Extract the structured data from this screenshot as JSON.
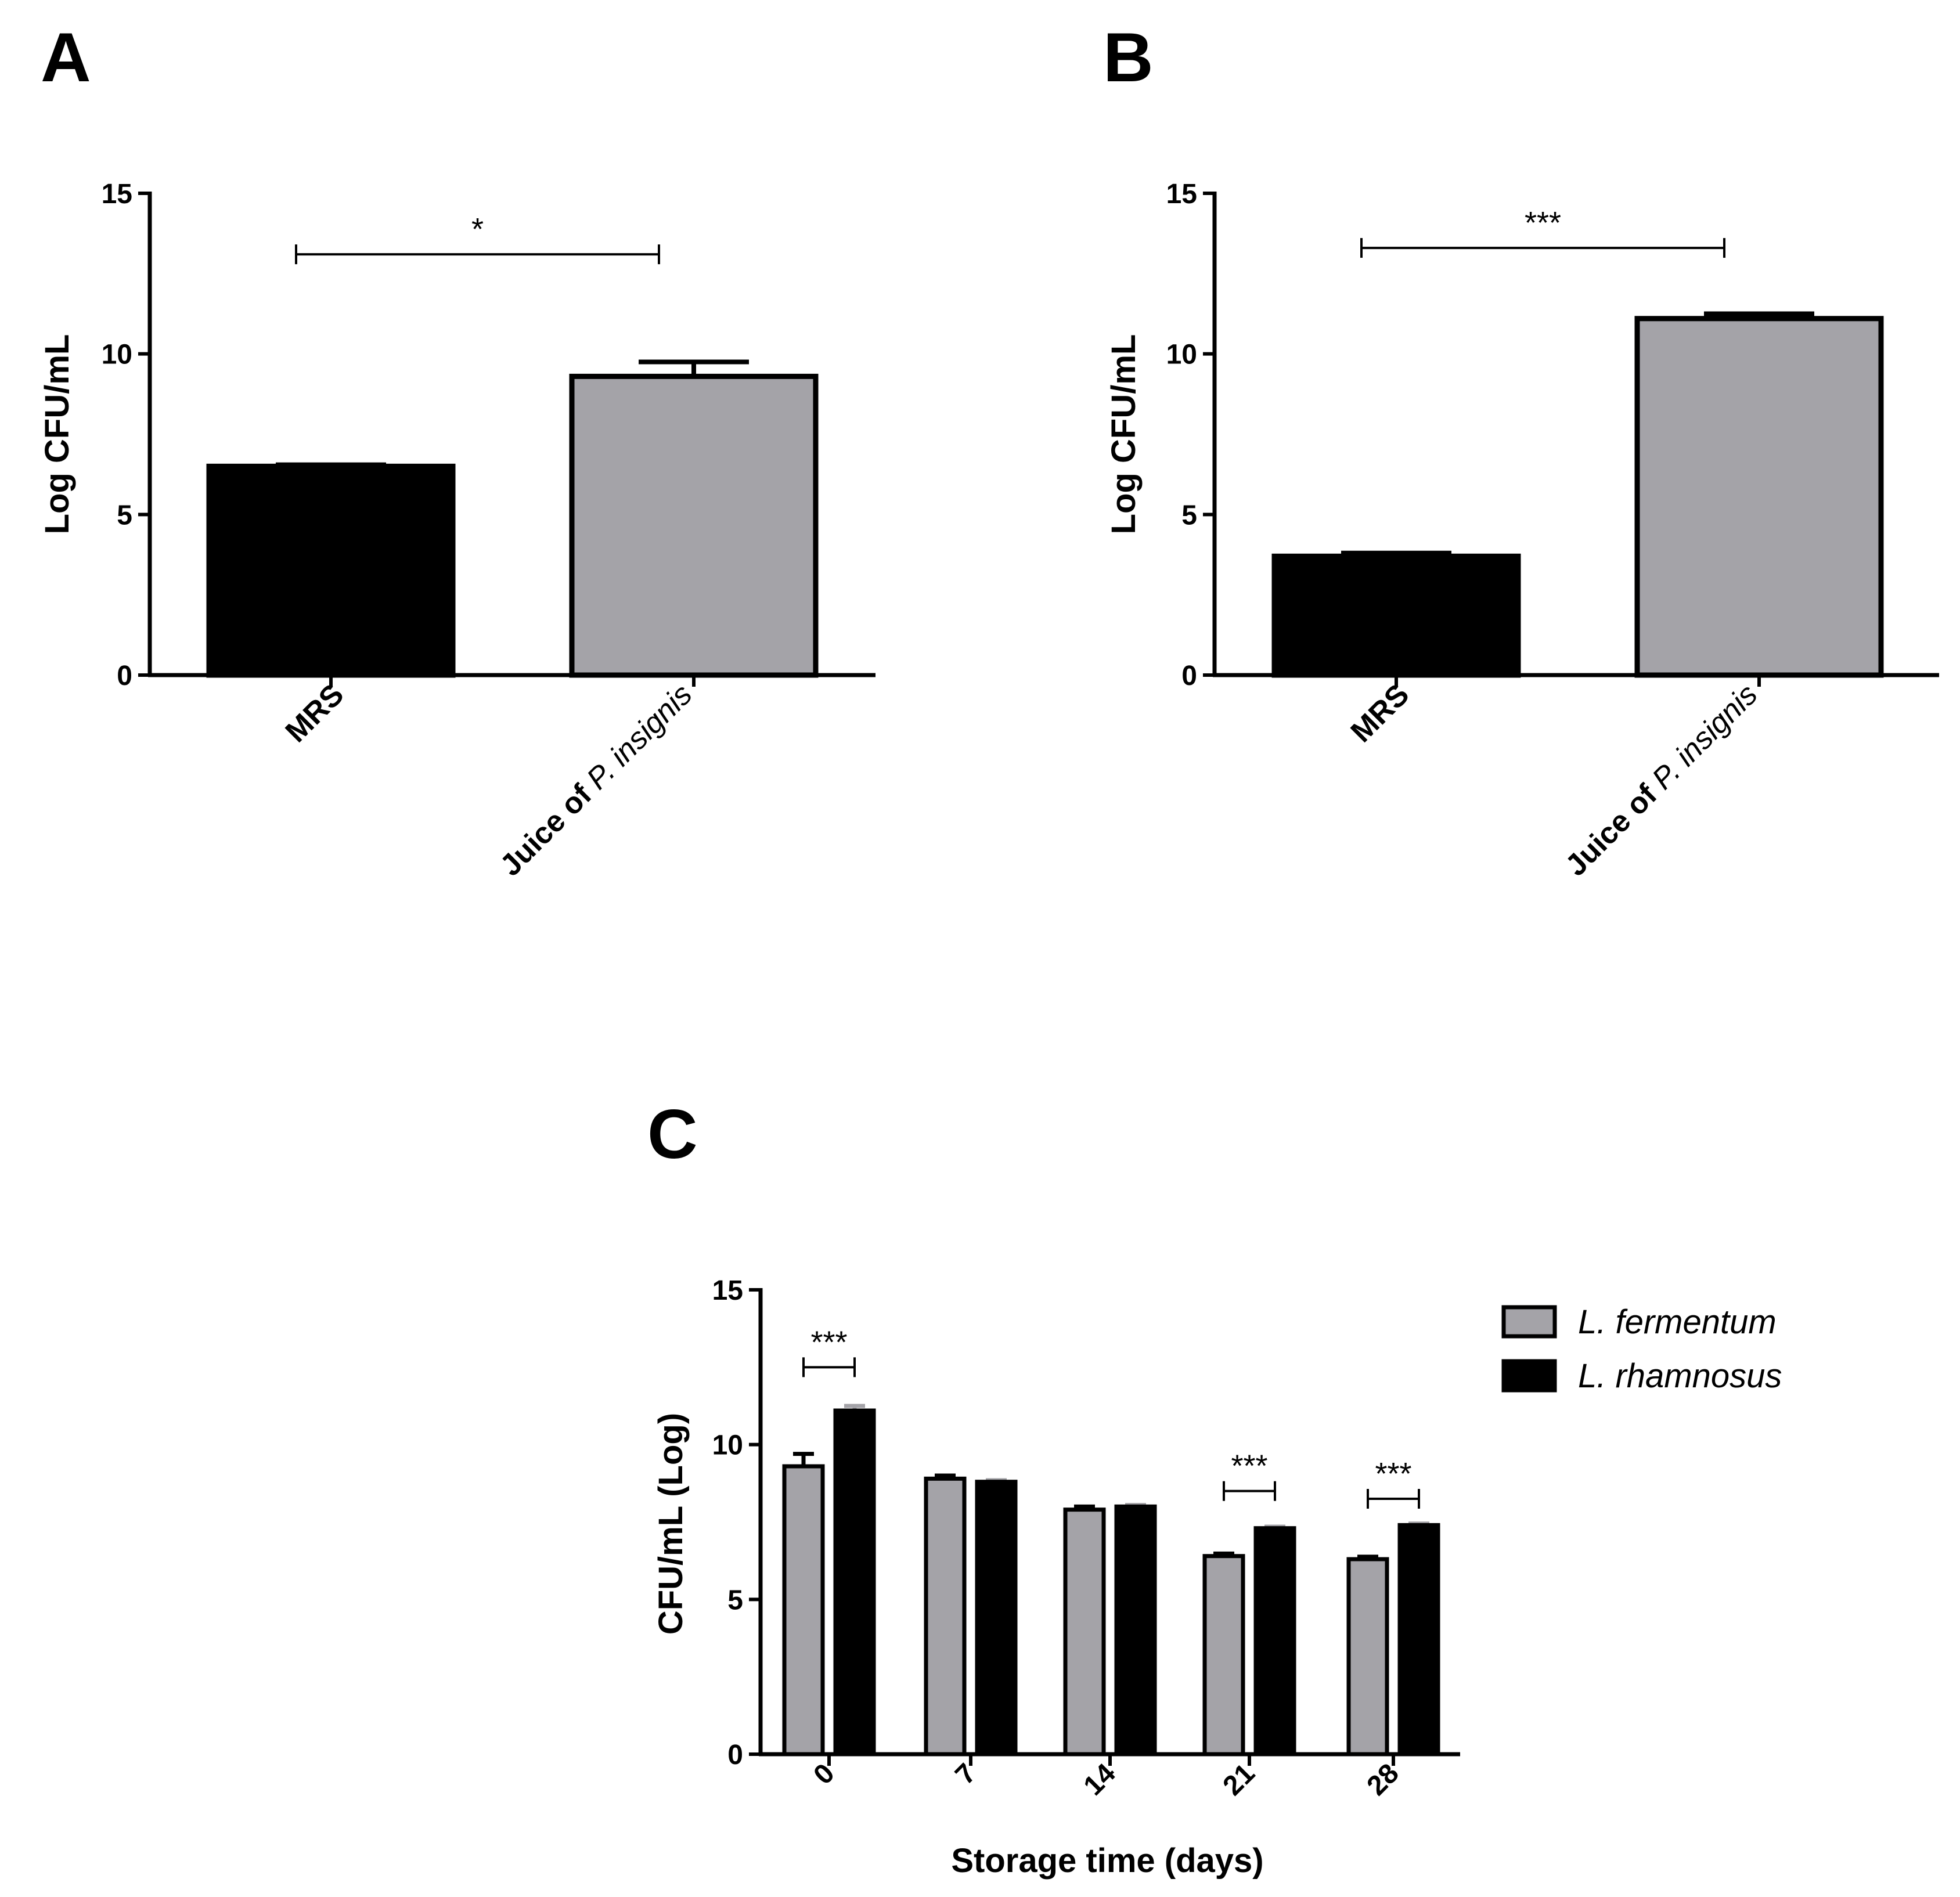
{
  "colors": {
    "gray": "#a4a3a8",
    "black": "#000000",
    "outline": "#000000"
  },
  "chart_data": [
    {
      "id": "A",
      "panel_label": "A",
      "type": "bar",
      "ylabel": "Log CFU/mL",
      "ylim": [
        0,
        15
      ],
      "yticks": [
        "0",
        "5",
        "10",
        "15"
      ],
      "categories": [
        {
          "label": "MRS",
          "label_italic": ""
        },
        {
          "label": "Juice of ",
          "label_italic": "P. insignis"
        }
      ],
      "values": [
        6.5,
        9.3
      ],
      "errors": [
        0.05,
        0.45
      ],
      "fill": [
        "black",
        "gray"
      ],
      "significance": {
        "from": 0,
        "to": 1,
        "label": "*",
        "y": 13.1
      }
    },
    {
      "id": "B",
      "panel_label": "B",
      "type": "bar",
      "ylabel": "Log CFU/mL",
      "ylim": [
        0,
        15
      ],
      "yticks": [
        "0",
        "5",
        "10",
        "15"
      ],
      "categories": [
        {
          "label": "MRS",
          "label_italic": ""
        },
        {
          "label": "Juice of ",
          "label_italic": "P. insignis"
        }
      ],
      "values": [
        3.7,
        11.1
      ],
      "errors": [
        0.1,
        0.15
      ],
      "fill": [
        "black",
        "gray"
      ],
      "significance": {
        "from": 0,
        "to": 1,
        "label": "***",
        "y": 13.3
      }
    },
    {
      "id": "C",
      "panel_label": "C",
      "type": "bar",
      "xlabel": "Storage time (days)",
      "ylabel": "CFU/mL (Log)",
      "ylim": [
        0,
        15
      ],
      "yticks": [
        "0",
        "5",
        "10",
        "15"
      ],
      "categories": [
        "0",
        "7",
        "14",
        "21",
        "28"
      ],
      "series": [
        {
          "name": "L. fermentum",
          "fill": "gray",
          "error_color": "black",
          "values": [
            9.3,
            8.9,
            7.9,
            6.4,
            6.3
          ],
          "errors": [
            0.4,
            0.1,
            0.1,
            0.08,
            0.08
          ]
        },
        {
          "name": "L. rhamnosus",
          "fill": "black",
          "error_color": "gray",
          "values": [
            11.1,
            8.8,
            8.0,
            7.3,
            7.4
          ],
          "errors": [
            0.15,
            0.05,
            0.05,
            0.05,
            0.05
          ]
        }
      ],
      "significance": [
        {
          "category": 0,
          "label": "***",
          "y": 12.5
        },
        {
          "category": 3,
          "label": "***",
          "y": 8.5
        },
        {
          "category": 4,
          "label": "***",
          "y": 8.25
        }
      ],
      "legend_position": "top-right"
    }
  ]
}
